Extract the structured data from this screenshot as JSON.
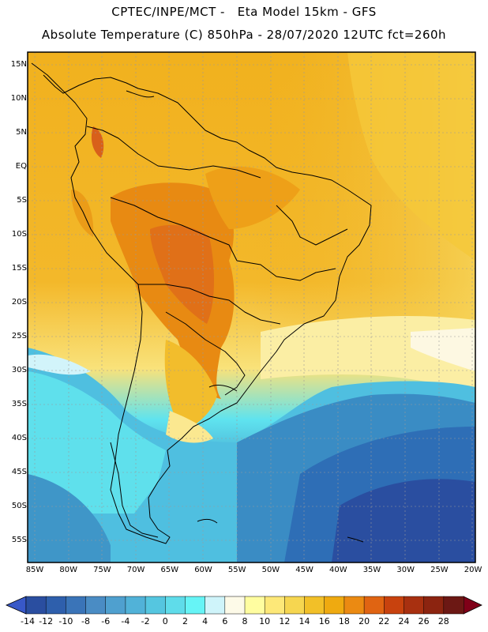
{
  "header": {
    "line1": "CPTEC/INPE/MCT -   Eta Model 15km - GFS",
    "line2": "Absolute Temperature (C) 850hPa - 28/07/2020 12UTC fct=260h"
  },
  "map": {
    "lat_labels": [
      "15N",
      "10N",
      "5N",
      "EQ",
      "5S",
      "10S",
      "15S",
      "20S",
      "25S",
      "30S",
      "35S",
      "40S",
      "45S",
      "50S",
      "55S"
    ],
    "lon_labels": [
      "85W",
      "80W",
      "75W",
      "70W",
      "65W",
      "60W",
      "55W",
      "50W",
      "45W",
      "40W",
      "35W",
      "30W",
      "25W",
      "20W"
    ],
    "lon_range": [
      -86,
      -20
    ],
    "lat_range": [
      16,
      -58
    ]
  },
  "colorbar": {
    "labels": [
      "-14",
      "-12",
      "-10",
      "-8",
      "-6",
      "-4",
      "-2",
      "0",
      "2",
      "4",
      "6",
      "8",
      "10",
      "12",
      "14",
      "16",
      "18",
      "20",
      "22",
      "24",
      "26",
      "28"
    ],
    "colors": [
      "#2a4ea0",
      "#2e5fac",
      "#3a74b8",
      "#4a8cc4",
      "#4fa0cf",
      "#51b2d8",
      "#55c6e0",
      "#5fdcea",
      "#66f4f6",
      "#cff4fa",
      "#fdfae8",
      "#fffda0",
      "#fde878",
      "#f6d650",
      "#f2c028",
      "#efaa10",
      "#eb8a12",
      "#e06412",
      "#c8420e",
      "#a83010",
      "#8c2410",
      "#6c1814"
    ],
    "min_color": "#3858c8",
    "max_color": "#800018"
  }
}
